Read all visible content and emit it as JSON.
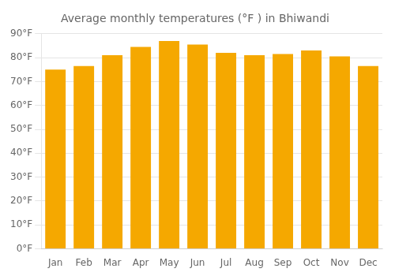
{
  "chart_data": {
    "type": "bar",
    "title": "Average monthly temperatures (°F ) in Bhiwandi",
    "categories": [
      "Jan",
      "Feb",
      "Mar",
      "Apr",
      "May",
      "Jun",
      "Jul",
      "Aug",
      "Sep",
      "Oct",
      "Nov",
      "Dec"
    ],
    "values": [
      75,
      76.5,
      81,
      84.5,
      87,
      85.5,
      82,
      81,
      81.5,
      83,
      80.5,
      76.5
    ],
    "color": "#F5A800",
    "ylim": [
      0,
      90
    ],
    "yticks": [
      {
        "value": 0,
        "label": "0°F"
      },
      {
        "value": 10,
        "label": "10°F"
      },
      {
        "value": 20,
        "label": "20°F"
      },
      {
        "value": 30,
        "label": "30°F"
      },
      {
        "value": 40,
        "label": "40°F"
      },
      {
        "value": 50,
        "label": "50°F"
      },
      {
        "value": 60,
        "label": "60°F"
      },
      {
        "value": 70,
        "label": "70°F"
      },
      {
        "value": 80,
        "label": "80°F"
      },
      {
        "value": 90,
        "label": "90°F"
      }
    ],
    "grid": true
  }
}
